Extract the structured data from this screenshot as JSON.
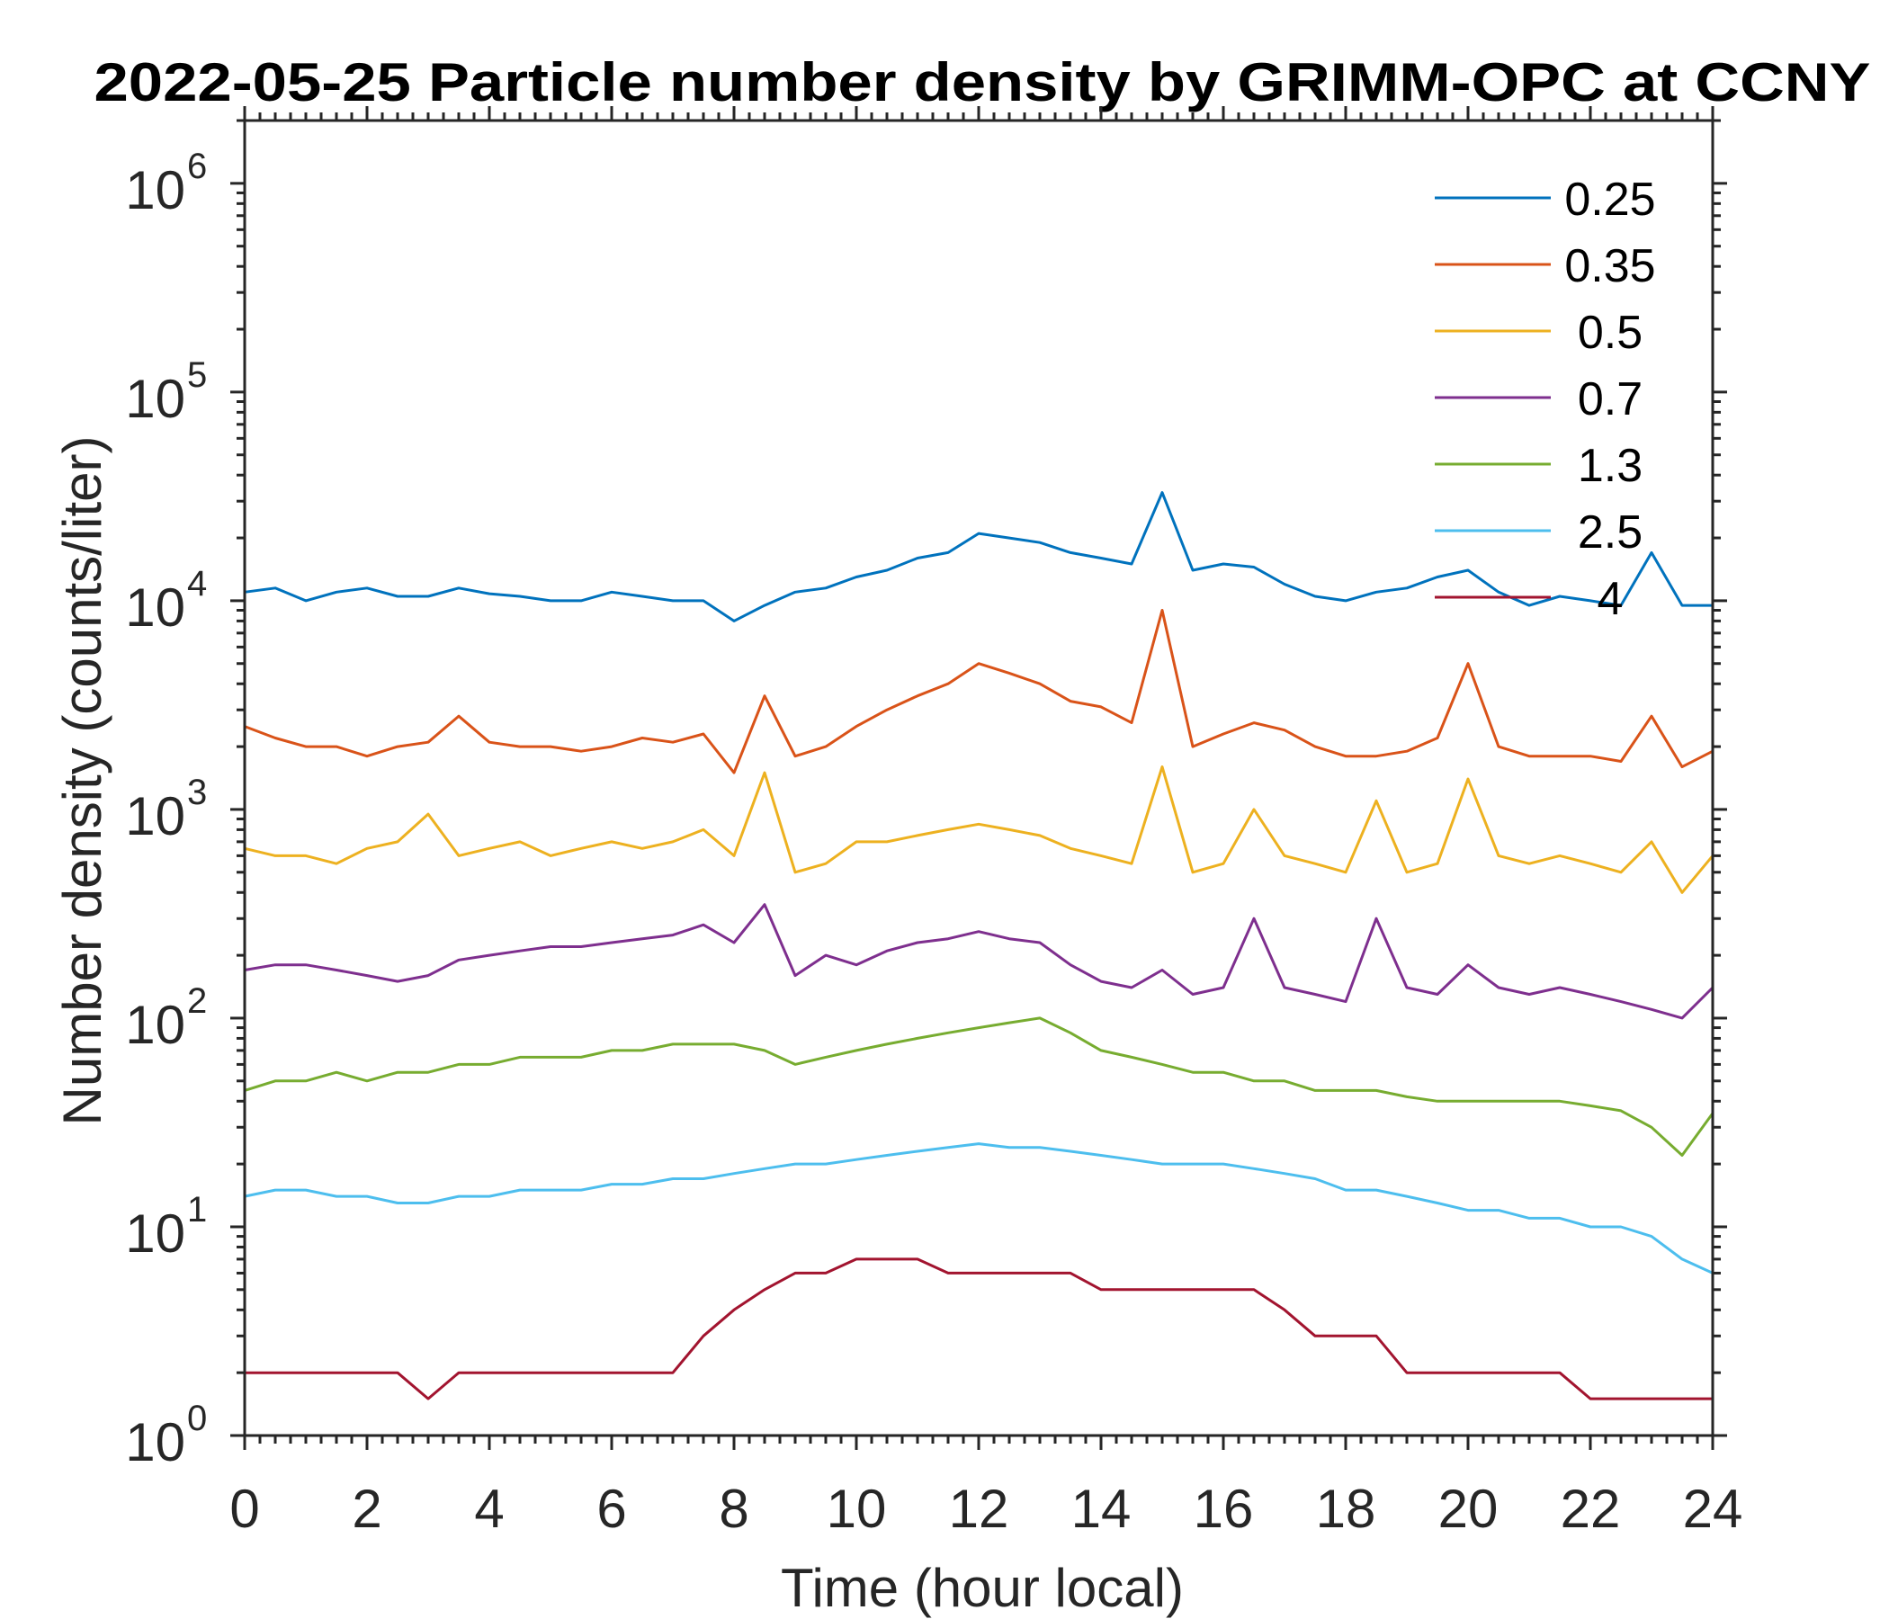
{
  "chart_data": {
    "type": "line",
    "title": "2022-05-25 Particle number density by GRIMM-OPC at CCNY",
    "xlabel": "Time (hour local)",
    "ylabel": "Number density (counts/liter)",
    "xlim": [
      0,
      24
    ],
    "ylim": [
      1,
      2000000
    ],
    "yscale": "log",
    "grid": false,
    "legend_placement": "top-right",
    "x_ticks": [
      "0",
      "2",
      "4",
      "6",
      "8",
      "10",
      "12",
      "14",
      "16",
      "18",
      "20",
      "22",
      "24"
    ],
    "y_ticks": [
      {
        "base": "10",
        "exp": "0"
      },
      {
        "base": "10",
        "exp": "1"
      },
      {
        "base": "10",
        "exp": "2"
      },
      {
        "base": "10",
        "exp": "3"
      },
      {
        "base": "10",
        "exp": "4"
      },
      {
        "base": "10",
        "exp": "5"
      },
      {
        "base": "10",
        "exp": "6"
      }
    ],
    "x_step": 0.5,
    "series": [
      {
        "name": "0.25",
        "color": "#0072BD",
        "values": [
          11000,
          11500,
          10000,
          11000,
          11500,
          10500,
          10500,
          11500,
          10800,
          10500,
          10000,
          10000,
          11000,
          10500,
          10000,
          10000,
          8000,
          9500,
          11000,
          11500,
          13000,
          14000,
          16000,
          17000,
          21000,
          20000,
          19000,
          17000,
          16000,
          15000,
          33000,
          14000,
          15000,
          14500,
          12000,
          10500,
          10000,
          11000,
          11500,
          13000,
          14000,
          11000,
          9500,
          10500,
          10000,
          9500,
          17000,
          9500,
          9500
        ]
      },
      {
        "name": "0.35",
        "color": "#D95319",
        "values": [
          2500,
          2200,
          2000,
          2000,
          1800,
          2000,
          2100,
          2800,
          2100,
          2000,
          2000,
          1900,
          2000,
          2200,
          2100,
          2300,
          1500,
          3500,
          1800,
          2000,
          2500,
          3000,
          3500,
          4000,
          5000,
          4500,
          4000,
          3300,
          3100,
          2600,
          9000,
          2000,
          2300,
          2600,
          2400,
          2000,
          1800,
          1800,
          1900,
          2200,
          5000,
          2000,
          1800,
          1800,
          1800,
          1700,
          2800,
          1600,
          1900
        ]
      },
      {
        "name": "0.5",
        "color": "#EDB120",
        "values": [
          650,
          600,
          600,
          550,
          650,
          700,
          950,
          600,
          650,
          700,
          600,
          650,
          700,
          650,
          700,
          800,
          600,
          1500,
          500,
          550,
          700,
          700,
          750,
          800,
          850,
          800,
          750,
          650,
          600,
          550,
          1600,
          500,
          550,
          1000,
          600,
          550,
          500,
          1100,
          500,
          550,
          1400,
          600,
          550,
          600,
          550,
          500,
          700,
          400,
          600
        ]
      },
      {
        "name": "0.7",
        "color": "#7E2F8E",
        "values": [
          170,
          180,
          180,
          170,
          160,
          150,
          160,
          190,
          200,
          210,
          220,
          220,
          230,
          240,
          250,
          280,
          230,
          350,
          160,
          200,
          180,
          210,
          230,
          240,
          260,
          240,
          230,
          180,
          150,
          140,
          170,
          130,
          140,
          300,
          140,
          130,
          120,
          300,
          140,
          130,
          180,
          140,
          130,
          140,
          130,
          120,
          110,
          100,
          140
        ]
      },
      {
        "name": "1.3",
        "color": "#77AC30",
        "values": [
          45,
          50,
          50,
          55,
          50,
          55,
          55,
          60,
          60,
          65,
          65,
          65,
          70,
          70,
          75,
          75,
          75,
          70,
          60,
          65,
          70,
          75,
          80,
          85,
          90,
          95,
          100,
          85,
          70,
          65,
          60,
          55,
          55,
          50,
          50,
          45,
          45,
          45,
          42,
          40,
          40,
          40,
          40,
          40,
          38,
          36,
          30,
          22,
          35
        ]
      },
      {
        "name": "2.5",
        "color": "#4DBEEE",
        "values": [
          14,
          15,
          15,
          14,
          14,
          13,
          13,
          14,
          14,
          15,
          15,
          15,
          16,
          16,
          17,
          17,
          18,
          19,
          20,
          20,
          21,
          22,
          23,
          24,
          25,
          24,
          24,
          23,
          22,
          21,
          20,
          20,
          20,
          19,
          18,
          17,
          15,
          15,
          14,
          13,
          12,
          12,
          11,
          11,
          10,
          10,
          9,
          7,
          6
        ]
      },
      {
        "name": "4",
        "color": "#A2142F",
        "values": [
          2,
          2,
          2,
          2,
          2,
          2,
          1.5,
          2,
          2,
          2,
          2,
          2,
          2,
          2,
          2,
          3,
          4,
          5,
          6,
          6,
          7,
          7,
          7,
          6,
          6,
          6,
          6,
          6,
          5,
          5,
          5,
          5,
          5,
          5,
          4,
          3,
          3,
          3,
          2,
          2,
          2,
          2,
          2,
          2,
          1.5,
          1.5,
          1.5,
          1.5,
          1.5
        ]
      }
    ]
  }
}
